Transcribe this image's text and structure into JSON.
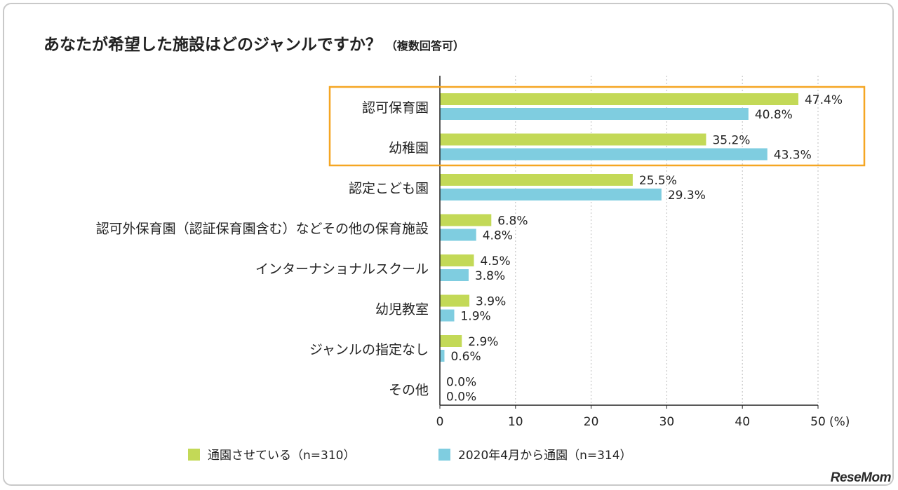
{
  "chart_data": {
    "type": "bar",
    "orientation": "horizontal",
    "title": "あなたが希望した施設はどのジャンルですか？",
    "subtitle": "（複数回答可）",
    "categories": [
      "認可保育園",
      "幼稚園",
      "認定こども園",
      "認可外保育園（認証保育園含む）などその他の保育施設",
      "インターナショナルスクール",
      "幼児教室",
      "ジャンルの指定なし",
      "その他"
    ],
    "series": [
      {
        "name": "通園させている（n=310）",
        "color": "#c3d957",
        "values": [
          47.4,
          35.2,
          25.5,
          6.8,
          4.5,
          3.9,
          2.9,
          0.0
        ]
      },
      {
        "name": "2020年4月から通園（n=314）",
        "color": "#7fcde0",
        "values": [
          40.8,
          43.3,
          29.3,
          4.8,
          3.8,
          1.9,
          0.6,
          0.0
        ]
      }
    ],
    "value_labels": [
      [
        "47.4%",
        "35.2%",
        "25.5%",
        "6.8%",
        "4.5%",
        "3.9%",
        "2.9%",
        "0.0%"
      ],
      [
        "40.8%",
        "43.3%",
        "29.3%",
        "4.8%",
        "3.8%",
        "1.9%",
        "0.6%",
        "0.0%"
      ]
    ],
    "xlim": [
      0,
      50
    ],
    "xticks": [
      0,
      10,
      20,
      30,
      40,
      50
    ],
    "xtick_labels": [
      "0",
      "10",
      "20",
      "30",
      "40",
      "50"
    ],
    "xunit": "(%)",
    "grid": true,
    "highlight": {
      "categories": [
        "認可保育園",
        "幼稚園"
      ],
      "color": "#f5a623"
    },
    "legend_position": "bottom"
  },
  "brand": {
    "logo_text": "ReseMom"
  }
}
